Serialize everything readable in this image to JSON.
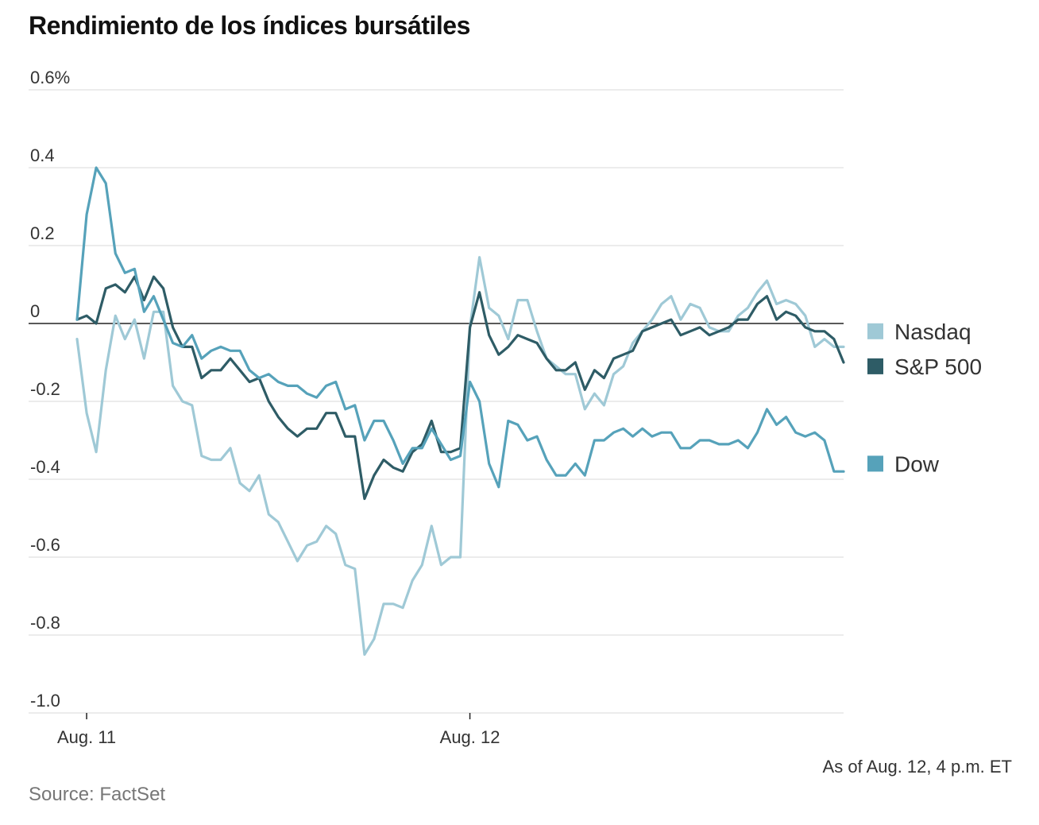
{
  "chart_data": {
    "type": "line",
    "title": "Rendimiento de los índices bursátiles",
    "xlabel": "",
    "ylabel": "",
    "ylim": [
      -1.0,
      0.6
    ],
    "y_ticks": [
      0.6,
      0.4,
      0.2,
      0,
      -0.2,
      -0.4,
      -0.6,
      -0.8,
      -1.0
    ],
    "y_tick_labels": [
      "0.6%",
      "0.4",
      "0.2",
      "0",
      "-0.2",
      "-0.4",
      "-0.6",
      "-0.8",
      "-1.0"
    ],
    "x_ticks": [
      {
        "label": "Aug. 11",
        "x": 1
      },
      {
        "label": "Aug. 12",
        "x": 41
      }
    ],
    "xlim": [
      -5,
      80
    ],
    "zero_line": true,
    "grid": true,
    "legend_position": "right",
    "series": [
      {
        "name": "Nasdaq",
        "color": "#9fc9d6",
        "legend_y": -0.02,
        "values": [
          -0.04,
          -0.23,
          -0.33,
          -0.12,
          0.02,
          -0.04,
          0.01,
          -0.09,
          0.03,
          0.03,
          -0.16,
          -0.2,
          -0.21,
          -0.34,
          -0.35,
          -0.35,
          -0.32,
          -0.41,
          -0.43,
          -0.39,
          -0.49,
          -0.51,
          -0.56,
          -0.61,
          -0.57,
          -0.56,
          -0.52,
          -0.54,
          -0.62,
          -0.63,
          -0.85,
          -0.81,
          -0.72,
          -0.72,
          -0.73,
          -0.66,
          -0.62,
          -0.52,
          -0.62,
          -0.6,
          -0.6,
          -0.01,
          0.17,
          0.04,
          0.02,
          -0.04,
          0.06,
          0.06,
          -0.02,
          -0.09,
          -0.11,
          -0.13,
          -0.13,
          -0.22,
          -0.18,
          -0.21,
          -0.13,
          -0.11,
          -0.05,
          -0.02,
          0.01,
          0.05,
          0.07,
          0.01,
          0.05,
          0.04,
          -0.01,
          -0.02,
          -0.02,
          0.02,
          0.04,
          0.08,
          0.11,
          0.05,
          0.06,
          0.05,
          0.02,
          -0.06,
          -0.04,
          -0.06,
          -0.06
        ]
      },
      {
        "name": "S&P 500",
        "color": "#2e5c66",
        "legend_y": -0.11,
        "values": [
          0.01,
          0.02,
          0.0,
          0.09,
          0.1,
          0.08,
          0.12,
          0.06,
          0.12,
          0.09,
          -0.01,
          -0.06,
          -0.06,
          -0.14,
          -0.12,
          -0.12,
          -0.09,
          -0.12,
          -0.15,
          -0.14,
          -0.2,
          -0.24,
          -0.27,
          -0.29,
          -0.27,
          -0.27,
          -0.23,
          -0.23,
          -0.29,
          -0.29,
          -0.45,
          -0.39,
          -0.35,
          -0.37,
          -0.38,
          -0.33,
          -0.31,
          -0.25,
          -0.33,
          -0.33,
          -0.32,
          -0.01,
          0.08,
          -0.03,
          -0.08,
          -0.06,
          -0.03,
          -0.04,
          -0.05,
          -0.09,
          -0.12,
          -0.12,
          -0.1,
          -0.17,
          -0.12,
          -0.14,
          -0.09,
          -0.08,
          -0.07,
          -0.02,
          -0.01,
          0.0,
          0.01,
          -0.03,
          -0.02,
          -0.01,
          -0.03,
          -0.02,
          -0.01,
          0.01,
          0.01,
          0.05,
          0.07,
          0.01,
          0.03,
          0.02,
          -0.01,
          -0.02,
          -0.02,
          -0.04,
          -0.1
        ]
      },
      {
        "name": "Dow",
        "color": "#56a2ba",
        "legend_y": -0.36,
        "values": [
          0.01,
          0.28,
          0.4,
          0.36,
          0.18,
          0.13,
          0.14,
          0.03,
          0.07,
          0.01,
          -0.05,
          -0.06,
          -0.03,
          -0.09,
          -0.07,
          -0.06,
          -0.07,
          -0.07,
          -0.12,
          -0.14,
          -0.13,
          -0.15,
          -0.16,
          -0.16,
          -0.18,
          -0.19,
          -0.16,
          -0.15,
          -0.22,
          -0.21,
          -0.3,
          -0.25,
          -0.25,
          -0.3,
          -0.36,
          -0.32,
          -0.32,
          -0.27,
          -0.31,
          -0.35,
          -0.34,
          -0.15,
          -0.2,
          -0.36,
          -0.42,
          -0.25,
          -0.26,
          -0.3,
          -0.29,
          -0.35,
          -0.39,
          -0.39,
          -0.36,
          -0.39,
          -0.3,
          -0.3,
          -0.28,
          -0.27,
          -0.29,
          -0.27,
          -0.29,
          -0.28,
          -0.28,
          -0.32,
          -0.32,
          -0.3,
          -0.3,
          -0.31,
          -0.31,
          -0.3,
          -0.32,
          -0.28,
          -0.22,
          -0.26,
          -0.24,
          -0.28,
          -0.29,
          -0.28,
          -0.3,
          -0.38,
          -0.38
        ]
      }
    ]
  },
  "footer": {
    "as_of": "As of Aug. 12, 4 p.m. ET",
    "source": "Source: FactSet"
  }
}
